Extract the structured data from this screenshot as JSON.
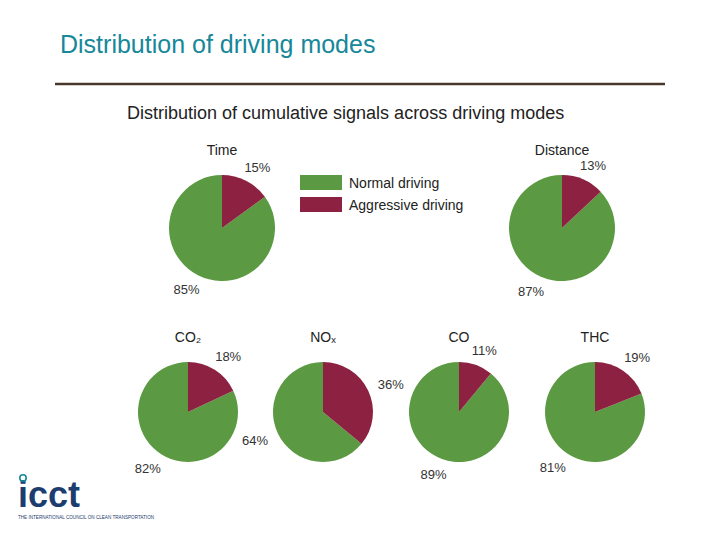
{
  "slide": {
    "title": "Distribution of driving modes",
    "subtitle": "Distribution of cumulative signals across driving modes",
    "logo": {
      "name": "icct",
      "tagline": "THE INTERNATIONAL COUNCIL ON CLEAN TRANSPORTATION"
    }
  },
  "chart_data": [
    {
      "type": "pie",
      "title": "Time",
      "categories": [
        "Normal driving",
        "Aggressive driving"
      ],
      "values": [
        85,
        15
      ],
      "value_labels": [
        "85%",
        "15%"
      ],
      "colors": [
        "#5b9a42",
        "#8c2141"
      ],
      "data_labels": true,
      "legend": "right"
    },
    {
      "type": "pie",
      "title": "Distance",
      "categories": [
        "Normal driving",
        "Aggressive driving"
      ],
      "values": [
        87,
        13
      ],
      "value_labels": [
        "87%",
        "13%"
      ],
      "colors": [
        "#5b9a42",
        "#8c2141"
      ],
      "data_labels": true
    },
    {
      "type": "pie",
      "title": "CO₂",
      "categories": [
        "Normal driving",
        "Aggressive driving"
      ],
      "values": [
        82,
        18
      ],
      "value_labels": [
        "82%",
        "18%"
      ],
      "colors": [
        "#5b9a42",
        "#8c2141"
      ],
      "data_labels": true
    },
    {
      "type": "pie",
      "title": "NOₓ",
      "categories": [
        "Normal driving",
        "Aggressive driving"
      ],
      "values": [
        64,
        36
      ],
      "value_labels": [
        "64%",
        "36%"
      ],
      "colors": [
        "#5b9a42",
        "#8c2141"
      ],
      "data_labels": true
    },
    {
      "type": "pie",
      "title": "CO",
      "categories": [
        "Normal driving",
        "Aggressive driving"
      ],
      "values": [
        89,
        11
      ],
      "value_labels": [
        "89%",
        "11%"
      ],
      "colors": [
        "#5b9a42",
        "#8c2141"
      ],
      "data_labels": true
    },
    {
      "type": "pie",
      "title": "THC",
      "categories": [
        "Normal driving",
        "Aggressive driving"
      ],
      "values": [
        81,
        19
      ],
      "value_labels": [
        "81%",
        "19%"
      ],
      "colors": [
        "#5b9a42",
        "#8c2141"
      ],
      "data_labels": true
    }
  ]
}
